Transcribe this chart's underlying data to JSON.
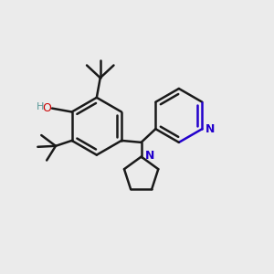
{
  "background_color": "#ebebeb",
  "bond_color": "#1a1a1a",
  "nitrogen_color": "#2200cc",
  "oxygen_color": "#cc0000",
  "h_color": "#5a9999",
  "line_width": 1.8,
  "figsize": [
    3.0,
    3.0
  ],
  "dpi": 100,
  "xlim": [
    0.0,
    3.0
  ],
  "ylim": [
    0.2,
    3.0
  ]
}
